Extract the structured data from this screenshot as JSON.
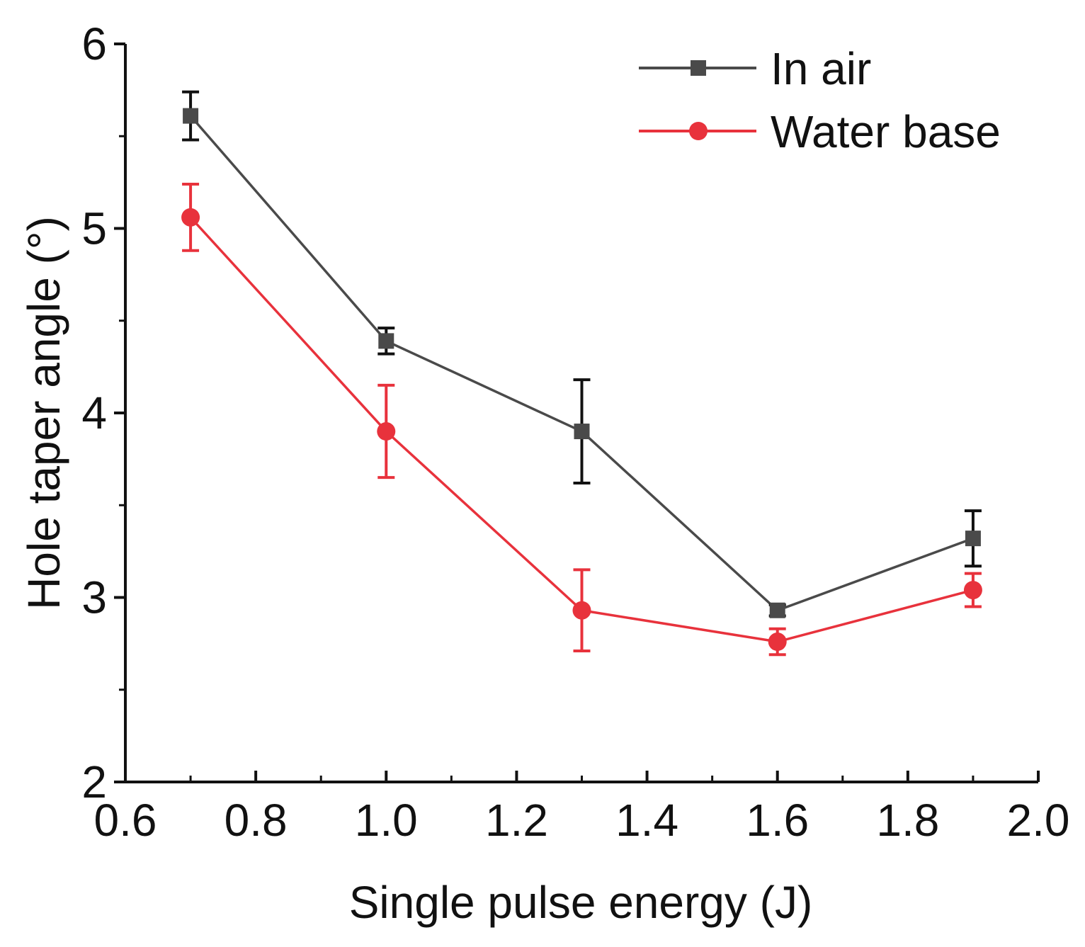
{
  "chart_data": {
    "type": "line",
    "title": "",
    "xlabel": "Single pulse energy (J)",
    "ylabel": "Hole taper angle (°)",
    "xlim": [
      0.6,
      2.0
    ],
    "ylim": [
      2,
      6
    ],
    "x_ticks": [
      0.6,
      0.8,
      1.0,
      1.2,
      1.4,
      1.6,
      1.8,
      2.0
    ],
    "x_tick_labels": [
      "0.6",
      "0.8",
      "1.0",
      "1.2",
      "1.4",
      "1.6",
      "1.8",
      "2.0"
    ],
    "y_ticks": [
      2,
      3,
      4,
      5,
      6
    ],
    "y_tick_labels": [
      "2",
      "3",
      "4",
      "5",
      "6"
    ],
    "grid": false,
    "legend_position": "top-right",
    "x": [
      0.7,
      1.0,
      1.3,
      1.6,
      1.9
    ],
    "series": [
      {
        "name": "In air",
        "marker": "square",
        "color": "#4a4a4a",
        "error_color": "#111111",
        "values": [
          5.61,
          4.39,
          3.9,
          2.93,
          3.32
        ],
        "errors": [
          0.13,
          0.07,
          0.28,
          0.03,
          0.15
        ]
      },
      {
        "name": "Water base",
        "marker": "circle",
        "color": "#e8323c",
        "error_color": "#e8323c",
        "values": [
          5.06,
          3.9,
          2.93,
          2.76,
          3.04
        ],
        "errors": [
          0.18,
          0.25,
          0.22,
          0.07,
          0.09
        ]
      }
    ]
  }
}
